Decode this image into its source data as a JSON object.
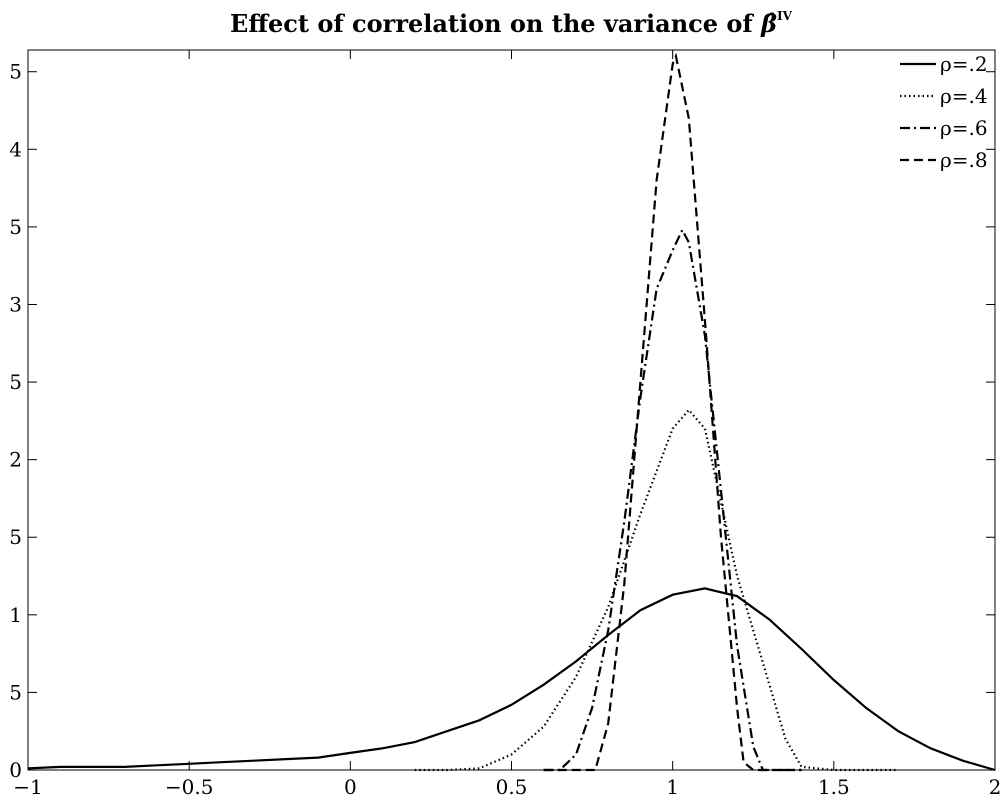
{
  "chart_data": {
    "type": "line",
    "title": "Effect of correlation on the variance of ",
    "title_symbol": "β̂",
    "title_superscript": "IV",
    "xlim": [
      -1,
      2
    ],
    "ylim": [
      0,
      4.64
    ],
    "xticks": [
      {
        "value": -1,
        "label": "−1"
      },
      {
        "value": -0.5,
        "label": "−0.5"
      },
      0,
      0.5,
      1,
      1.5,
      2
    ],
    "yticks": [
      0,
      {
        "value": 0.5,
        "label": "5"
      },
      1,
      {
        "value": 1.5,
        "label": "5"
      },
      2,
      {
        "value": 2.5,
        "label": "5"
      },
      3,
      {
        "value": 3.5,
        "label": "5"
      },
      4,
      {
        "value": 4.5,
        "label": "5"
      }
    ],
    "legend": "northeast",
    "series": [
      {
        "name": "ρ=.2",
        "color": "#000000",
        "style": "solid",
        "x": [
          -1,
          -0.9,
          -0.8,
          -0.7,
          -0.6,
          -0.5,
          -0.4,
          -0.3,
          -0.2,
          -0.1,
          0,
          0.1,
          0.2,
          0.3,
          0.4,
          0.5,
          0.6,
          0.7,
          0.8,
          0.9,
          1.0,
          1.1,
          1.2,
          1.3,
          1.4,
          1.5,
          1.6,
          1.7,
          1.8,
          1.9,
          2.0
        ],
        "values": [
          0.01,
          0.02,
          0.02,
          0.02,
          0.03,
          0.04,
          0.05,
          0.06,
          0.07,
          0.08,
          0.11,
          0.14,
          0.18,
          0.25,
          0.32,
          0.42,
          0.55,
          0.7,
          0.87,
          1.03,
          1.13,
          1.17,
          1.12,
          0.97,
          0.78,
          0.58,
          0.4,
          0.25,
          0.14,
          0.06,
          0
        ]
      },
      {
        "name": "ρ=.4",
        "color": "#000000",
        "style": "dotted",
        "x": [
          0.2,
          0.3,
          0.4,
          0.5,
          0.6,
          0.7,
          0.8,
          0.9,
          1.0,
          1.05,
          1.1,
          1.2,
          1.3,
          1.35,
          1.4,
          1.5,
          1.7
        ],
        "values": [
          0,
          0,
          0.01,
          0.1,
          0.28,
          0.6,
          1.05,
          1.65,
          2.2,
          2.32,
          2.2,
          1.25,
          0.55,
          0.2,
          0.02,
          0,
          0
        ]
      },
      {
        "name": "ρ=.6",
        "color": "#000000",
        "style": "dashdot",
        "x": [
          0.6,
          0.65,
          0.7,
          0.75,
          0.8,
          0.85,
          0.9,
          0.95,
          1.0,
          1.03,
          1.05,
          1.1,
          1.15,
          1.2,
          1.25,
          1.28,
          1.4
        ],
        "values": [
          0,
          0,
          0.1,
          0.4,
          0.9,
          1.6,
          2.4,
          3.1,
          3.35,
          3.48,
          3.4,
          2.8,
          1.8,
          0.8,
          0.15,
          0,
          0
        ]
      },
      {
        "name": "ρ=.8",
        "color": "#000000",
        "style": "dashed",
        "x": [
          0.6,
          0.76,
          0.8,
          0.85,
          0.9,
          0.95,
          1.0,
          1.01,
          1.05,
          1.1,
          1.15,
          1.2,
          1.22,
          1.25,
          1.4
        ],
        "values": [
          0,
          0,
          0.3,
          1.2,
          2.5,
          3.8,
          4.55,
          4.6,
          4.2,
          2.9,
          1.5,
          0.4,
          0.05,
          0,
          0
        ]
      }
    ]
  }
}
